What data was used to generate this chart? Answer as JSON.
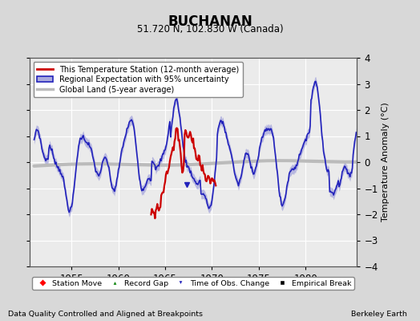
{
  "title": "BUCHANAN",
  "subtitle": "51.720 N, 102.830 W (Canada)",
  "ylabel": "Temperature Anomaly (°C)",
  "xlabel_note": "Data Quality Controlled and Aligned at Breakpoints",
  "credit": "Berkeley Earth",
  "xlim": [
    1950.5,
    1985.5
  ],
  "ylim": [
    -4,
    4
  ],
  "yticks": [
    -4,
    -3,
    -2,
    -1,
    0,
    1,
    2,
    3,
    4
  ],
  "xticks": [
    1955,
    1960,
    1965,
    1970,
    1975,
    1980
  ],
  "bg_color": "#d8d8d8",
  "plot_bg_color": "#ebebeb",
  "regional_color": "#2222bb",
  "regional_fill_color": "#aaaadd",
  "station_color": "#cc0000",
  "global_color": "#bbbbbb",
  "global_linewidth": 3.0,
  "regional_linewidth": 1.2,
  "station_linewidth": 1.6
}
